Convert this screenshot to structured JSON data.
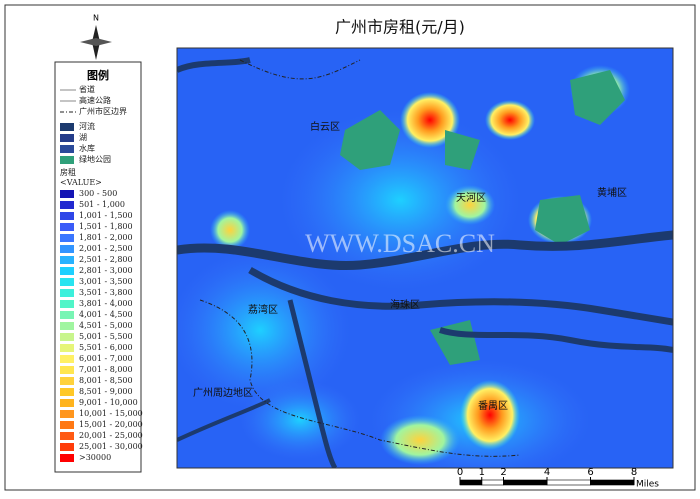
{
  "title": "广州市房租(元/月)",
  "north": "N",
  "watermark": "WWW.DSAC.CN",
  "districts": [
    "白云区",
    "天河区",
    "黄埔区",
    "荔湾区",
    "海珠区",
    "番禺区",
    "广州周边地区"
  ],
  "legend": {
    "title": "图例",
    "lines": [
      "省道",
      "高速公路",
      "广州市区边界"
    ],
    "areas": [
      {
        "label": "河流",
        "color": "#1c3a6e"
      },
      {
        "label": "湖",
        "color": "#243c8a"
      },
      {
        "label": "水库",
        "color": "#2a4a9a"
      },
      {
        "label": "绿地公园",
        "color": "#2fa07a"
      }
    ],
    "field": "房租",
    "field_sub": "<VALUE>",
    "classes": [
      {
        "label": "300 - 500",
        "color": "#1414b4"
      },
      {
        "label": "501 - 1,000",
        "color": "#2228d0"
      },
      {
        "label": "1,001 - 1,500",
        "color": "#2e46e8"
      },
      {
        "label": "1,501 - 1,800",
        "color": "#3a5cf8"
      },
      {
        "label": "1,801 - 2,000",
        "color": "#3a76ff"
      },
      {
        "label": "2,001 - 2,500",
        "color": "#3294ff"
      },
      {
        "label": "2,501 - 2,800",
        "color": "#28b2ff"
      },
      {
        "label": "2,801 - 3,000",
        "color": "#1ed0ff"
      },
      {
        "label": "3,001 - 3,500",
        "color": "#28e4f0"
      },
      {
        "label": "3,501 - 3,800",
        "color": "#3cf0dc"
      },
      {
        "label": "3,801 - 4,000",
        "color": "#50f5c8"
      },
      {
        "label": "4,001 - 4,500",
        "color": "#78f5b4"
      },
      {
        "label": "4,501 - 5,000",
        "color": "#a0f5a0"
      },
      {
        "label": "5,001 - 5,500",
        "color": "#c8f58c"
      },
      {
        "label": "5,501 - 6,000",
        "color": "#e6f578"
      },
      {
        "label": "6,001 - 7,000",
        "color": "#fff064"
      },
      {
        "label": "7,001 - 8,000",
        "color": "#ffe650"
      },
      {
        "label": "8,001 - 8,500",
        "color": "#ffd23c"
      },
      {
        "label": "8,501 - 9,000",
        "color": "#ffc828"
      },
      {
        "label": "9,001 - 10,000",
        "color": "#ffb41e"
      },
      {
        "label": "10,001 - 15,000",
        "color": "#ff961e"
      },
      {
        "label": "15,001 - 20,000",
        "color": "#ff7814"
      },
      {
        "label": "20,001 - 25,000",
        "color": "#ff5a14"
      },
      {
        "label": "25,001 - 30,000",
        "color": "#ff3c0a"
      },
      {
        "label": ">30000",
        "color": "#ff0000"
      }
    ]
  },
  "scale_bar": {
    "ticks": [
      0,
      1,
      2,
      4,
      6,
      8
    ],
    "unit": "Miles"
  }
}
